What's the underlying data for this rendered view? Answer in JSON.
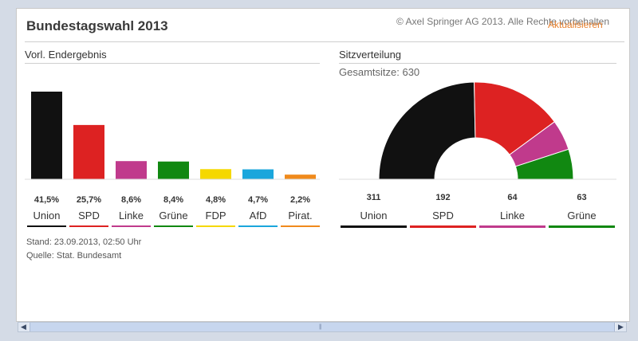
{
  "header": {
    "title": "Bundestagswahl 2013",
    "copyright": "© Axel Springer AG 2013. Alle Rechte vorbehalten",
    "refresh_label": "Aktualisieren"
  },
  "results_section": {
    "title": "Vorl. Endergebnis"
  },
  "seats_section": {
    "title": "Sitzverteilung",
    "total_label": "Gesamtsitze: 630"
  },
  "footer": {
    "stand": "Stand: 23.09.2013, 02:50 Uhr",
    "quelle": "Quelle: Stat. Bundesamt"
  },
  "colors": {
    "Union": "#111111",
    "SPD": "#dd2222",
    "Linke": "#c03a8c",
    "Grüne": "#118811",
    "FDP": "#f5d800",
    "AfD": "#1aa6dc",
    "Pirat.": "#f08a1c"
  },
  "chart_data": [
    {
      "type": "bar",
      "categories": [
        "Union",
        "SPD",
        "Linke",
        "Grüne",
        "FDP",
        "AfD",
        "Pirat."
      ],
      "values": [
        41.5,
        25.7,
        8.6,
        8.4,
        4.8,
        4.7,
        2.2
      ],
      "value_labels": [
        "41,5%",
        "25,7%",
        "8,6%",
        "8,4%",
        "4,8%",
        "4,7%",
        "2,2%"
      ],
      "title": "Vorl. Endergebnis"
    },
    {
      "type": "pie",
      "categories": [
        "Union",
        "SPD",
        "Linke",
        "Grüne"
      ],
      "values": [
        311,
        192,
        64,
        63
      ],
      "value_labels": [
        "311",
        "192",
        "64",
        "63"
      ],
      "total": 630,
      "title": "Sitzverteilung"
    }
  ]
}
